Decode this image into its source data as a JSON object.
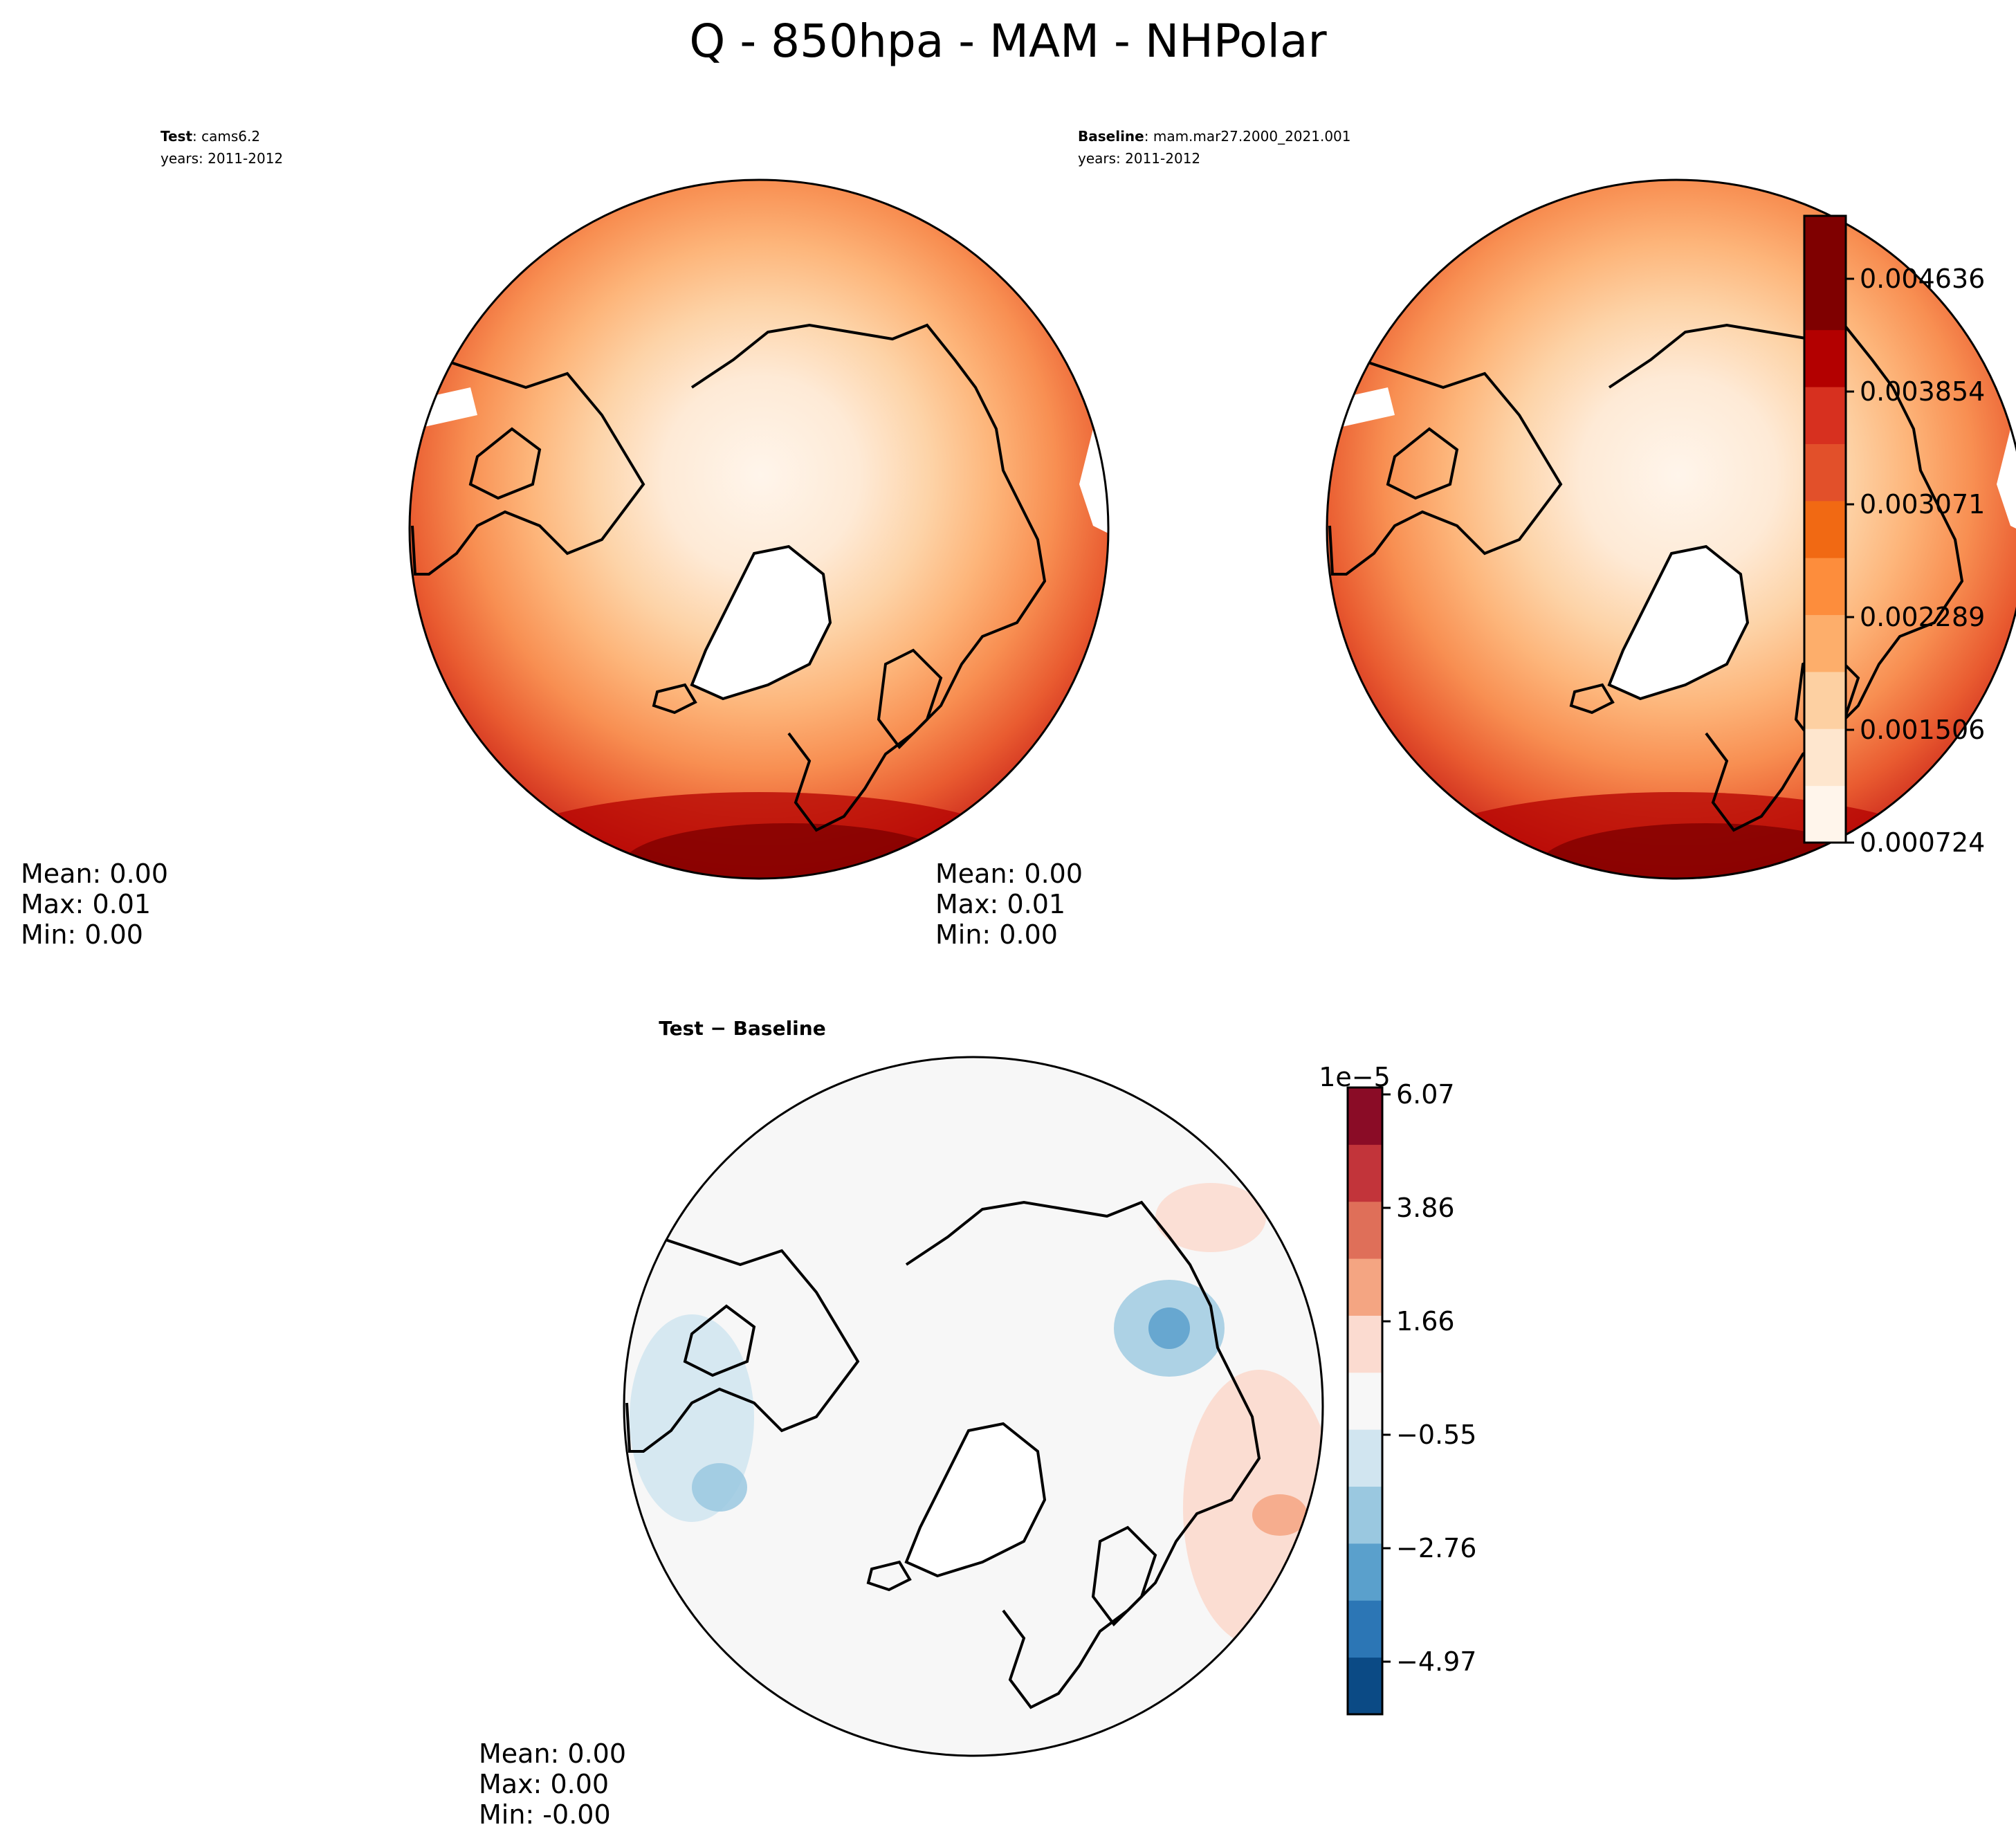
{
  "title": "Q - 850hpa - MAM - NHPolar",
  "panels": [
    {
      "label_bold": "Test",
      "label_rest": ": cams6.2",
      "years": "years: 2011-2012",
      "stats": [
        "Mean:  0.00",
        "Max:  0.01",
        "Min:  0.00"
      ]
    },
    {
      "label_bold": "Baseline",
      "label_rest": ": mam.mar27.2000_2021.001",
      "years": "years: 2011-2012",
      "stats": [
        "Mean:  0.00",
        "Max:  0.01",
        "Min:  0.00"
      ]
    },
    {
      "label_bold": "Test − Baseline",
      "stats": [
        "Mean:  0.00",
        "Max:  0.00",
        "Min: -0.00"
      ]
    }
  ],
  "colorbar_main": {
    "ticks": [
      "0.000724",
      "0.001506",
      "0.002289",
      "0.003071",
      "0.003854",
      "0.004636"
    ],
    "colors": [
      "#fff5eb",
      "#fee6ce",
      "#fdd0a2",
      "#fdae6b",
      "#fd8d3c",
      "#f16913",
      "#e2502a",
      "#d7301f",
      "#b30000",
      "#7f0000",
      "#7f0000"
    ]
  },
  "colorbar_diff": {
    "multiplier": "1e−5",
    "ticks": [
      "−4.97",
      "−2.76",
      "−0.55",
      "1.66",
      "3.86",
      "6.07"
    ],
    "colors": [
      "#0b4a85",
      "#2c76b5",
      "#5aa0cc",
      "#9ac8e0",
      "#d1e5f0",
      "#f7f7f7",
      "#fbdbd0",
      "#f4a582",
      "#df6f59",
      "#c2343a",
      "#8a0c26"
    ]
  }
}
